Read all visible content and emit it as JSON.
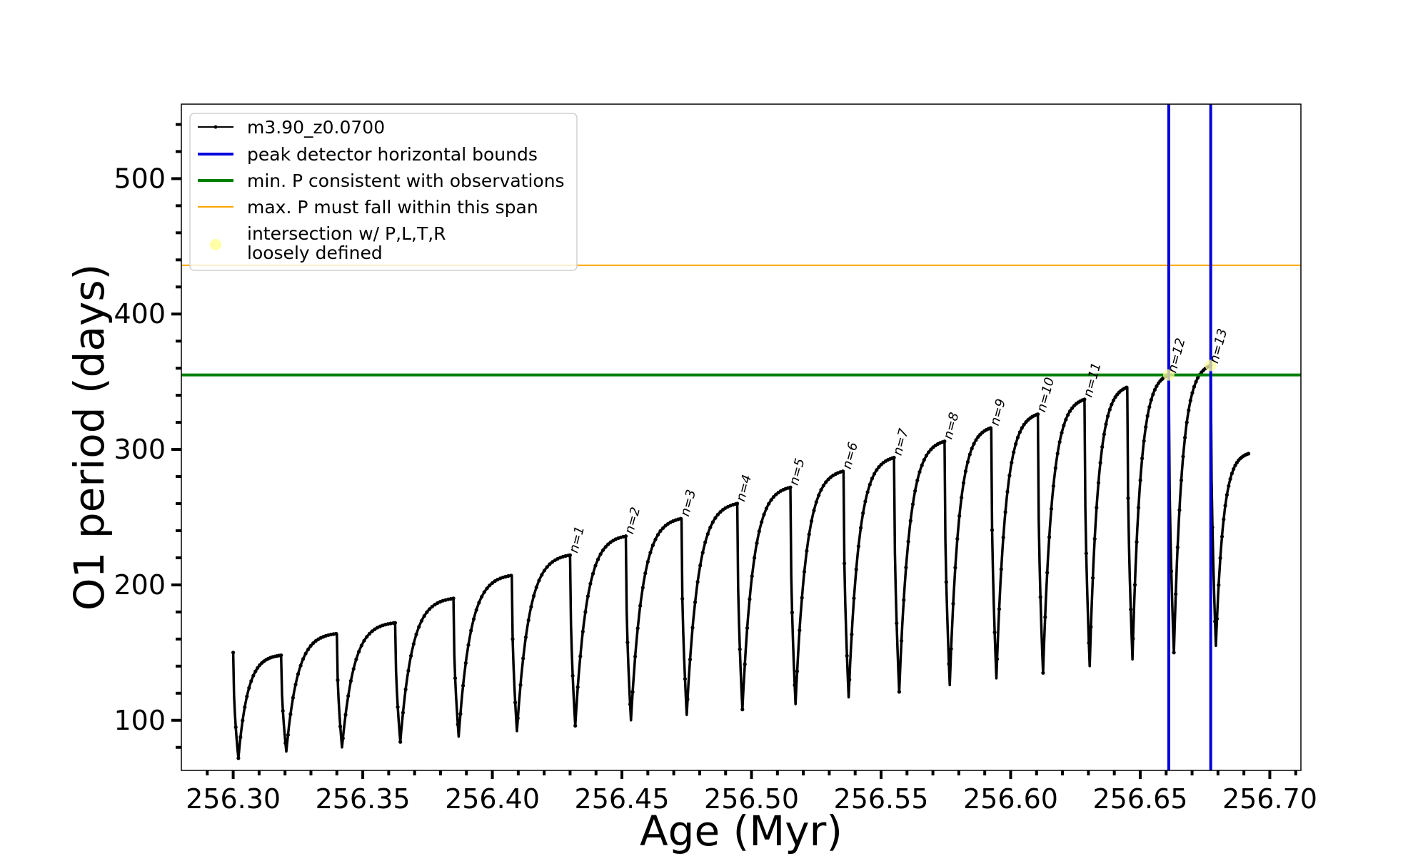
{
  "chart_data": {
    "type": "line",
    "xlabel": "Age (Myr)",
    "ylabel": "O1 period (days)",
    "xlim": [
      256.28,
      256.712
    ],
    "ylim": [
      63,
      555
    ],
    "x_ticks": [
      "256.30",
      "256.35",
      "256.40",
      "256.45",
      "256.50",
      "256.55",
      "256.60",
      "256.65",
      "256.70"
    ],
    "y_ticks": [
      "100",
      "200",
      "300",
      "400",
      "500"
    ],
    "grid": false,
    "legend_position": "top-left",
    "colors": {
      "series": "#000000",
      "peak_bounds": "#0000dd",
      "min_period": "#008000",
      "max_period": "#ffa500",
      "intersection": "#ffff99"
    },
    "legend": [
      {
        "label": "m3.90_z0.0700",
        "kind": "line-marker"
      },
      {
        "label": "peak detector horizontal bounds",
        "kind": "line-blue"
      },
      {
        "label": "min. P consistent with observations",
        "kind": "line-green"
      },
      {
        "label": "max. P must fall within this span",
        "kind": "line-orange"
      },
      {
        "label": "intersection w/ P,L,T,R",
        "label2": "loosely defined",
        "kind": "dot"
      }
    ],
    "series": [
      {
        "name": "m3.90_z0.0700",
        "cycles": [
          {
            "start": 256.3,
            "start_p": 150,
            "min_x": 256.302,
            "min_p": 72,
            "end_x": 256.3185,
            "end_p": 148
          },
          {
            "start": 256.3185,
            "start_p": 148,
            "min_x": 256.3205,
            "min_p": 77,
            "end_x": 256.34,
            "end_p": 164
          },
          {
            "start": 256.34,
            "start_p": 164,
            "min_x": 256.342,
            "min_p": 80,
            "end_x": 256.3625,
            "end_p": 172
          },
          {
            "start": 256.3625,
            "start_p": 172,
            "min_x": 256.3645,
            "min_p": 84,
            "end_x": 256.385,
            "end_p": 190
          },
          {
            "start": 256.385,
            "start_p": 190,
            "min_x": 256.387,
            "min_p": 88,
            "end_x": 256.4075,
            "end_p": 207
          },
          {
            "start": 256.4075,
            "start_p": 207,
            "min_x": 256.4095,
            "min_p": 92,
            "end_x": 256.43,
            "end_p": 222
          },
          {
            "start": 256.43,
            "start_p": 222,
            "min_x": 256.432,
            "min_p": 96,
            "end_x": 256.4515,
            "end_p": 236
          },
          {
            "start": 256.4515,
            "start_p": 236,
            "min_x": 256.4535,
            "min_p": 100,
            "end_x": 256.473,
            "end_p": 249
          },
          {
            "start": 256.473,
            "start_p": 249,
            "min_x": 256.475,
            "min_p": 104,
            "end_x": 256.4945,
            "end_p": 260
          },
          {
            "start": 256.4945,
            "start_p": 260,
            "min_x": 256.4965,
            "min_p": 108,
            "end_x": 256.515,
            "end_p": 272
          },
          {
            "start": 256.515,
            "start_p": 272,
            "min_x": 256.517,
            "min_p": 112,
            "end_x": 256.5355,
            "end_p": 284
          },
          {
            "start": 256.5355,
            "start_p": 284,
            "min_x": 256.5375,
            "min_p": 117,
            "end_x": 256.555,
            "end_p": 294
          },
          {
            "start": 256.555,
            "start_p": 294,
            "min_x": 256.557,
            "min_p": 121,
            "end_x": 256.5745,
            "end_p": 306
          },
          {
            "start": 256.5745,
            "start_p": 306,
            "min_x": 256.5765,
            "min_p": 126,
            "end_x": 256.5925,
            "end_p": 316
          },
          {
            "start": 256.5925,
            "start_p": 316,
            "min_x": 256.5945,
            "min_p": 131,
            "end_x": 256.6105,
            "end_p": 326
          },
          {
            "start": 256.6105,
            "start_p": 326,
            "min_x": 256.6125,
            "min_p": 135,
            "end_x": 256.6285,
            "end_p": 337
          },
          {
            "start": 256.6285,
            "start_p": 337,
            "min_x": 256.6305,
            "min_p": 140,
            "end_x": 256.645,
            "end_p": 346
          },
          {
            "start": 256.645,
            "start_p": 346,
            "min_x": 256.647,
            "min_p": 145,
            "end_x": 256.661,
            "end_p": 355
          },
          {
            "start": 256.661,
            "start_p": 355,
            "min_x": 256.663,
            "min_p": 150,
            "end_x": 256.6772,
            "end_p": 362
          },
          {
            "start": 256.6772,
            "start_p": 362,
            "min_x": 256.6792,
            "min_p": 155,
            "end_x": 256.692,
            "end_p": 297
          }
        ]
      }
    ],
    "min_period_line": 355,
    "max_period_line": 436,
    "peak_bounds_x": [
      256.661,
      256.6772
    ],
    "intersections": [
      {
        "x": 256.661,
        "y": 355
      },
      {
        "x": 256.6772,
        "y": 362
      }
    ],
    "peak_labels": [
      {
        "text": "n=1",
        "x": 256.43,
        "y": 222
      },
      {
        "text": "n=2",
        "x": 256.4515,
        "y": 236
      },
      {
        "text": "n=3",
        "x": 256.473,
        "y": 249
      },
      {
        "text": "n=4",
        "x": 256.4945,
        "y": 260
      },
      {
        "text": "n=5",
        "x": 256.515,
        "y": 272
      },
      {
        "text": "n=6",
        "x": 256.5355,
        "y": 284
      },
      {
        "text": "n=7",
        "x": 256.555,
        "y": 294
      },
      {
        "text": "n=8",
        "x": 256.5745,
        "y": 306
      },
      {
        "text": "n=9",
        "x": 256.5925,
        "y": 316
      },
      {
        "text": "n=10",
        "x": 256.6105,
        "y": 326
      },
      {
        "text": "n=11",
        "x": 256.6285,
        "y": 337
      },
      {
        "text": "n=12",
        "x": 256.661,
        "y": 355
      },
      {
        "text": "n=13",
        "x": 256.6772,
        "y": 362
      }
    ]
  }
}
